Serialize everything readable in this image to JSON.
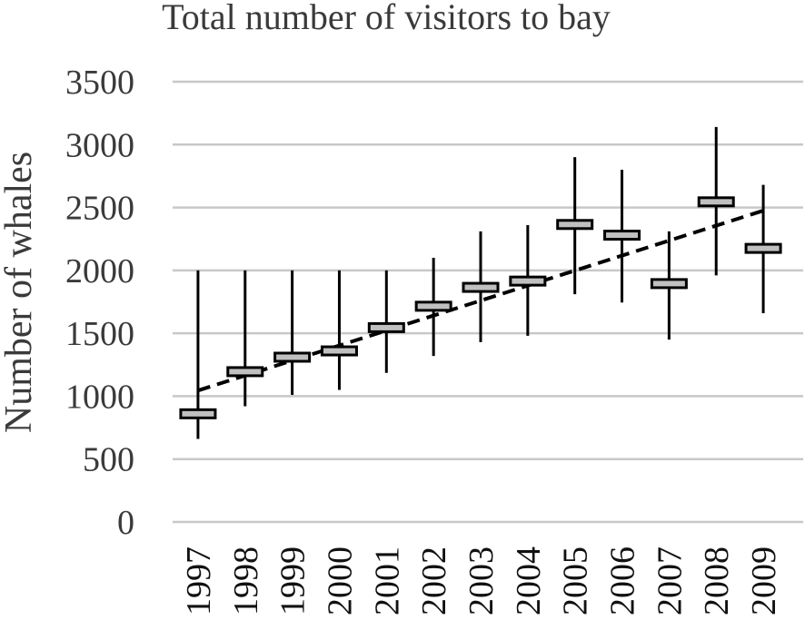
{
  "chart_data": {
    "type": "box",
    "title": "Total number of visitors to bay",
    "xlabel": "",
    "ylabel": "Number of whales",
    "ylim": [
      0,
      3500
    ],
    "yticks": [
      0,
      500,
      1000,
      1500,
      2000,
      2500,
      3000,
      3500
    ],
    "grid": true,
    "categories": [
      "1997",
      "1998",
      "1999",
      "2000",
      "2001",
      "2002",
      "2003",
      "2004",
      "2005",
      "2006",
      "2007",
      "2008",
      "2009"
    ],
    "series": [
      {
        "median": [
          860,
          1195,
          1310,
          1360,
          1545,
          1715,
          1865,
          1915,
          2365,
          2280,
          1895,
          2545,
          2175
        ],
        "low": [
          660,
          920,
          1010,
          1050,
          1185,
          1320,
          1430,
          1480,
          1810,
          1745,
          1450,
          1960,
          1660
        ],
        "high": [
          2000,
          2000,
          2000,
          2000,
          2000,
          2100,
          2310,
          2360,
          2900,
          2800,
          2310,
          3140,
          2680
        ]
      }
    ],
    "trendline": {
      "style": "dashed",
      "start": 1045,
      "end": 2475
    },
    "colors": {
      "box_fill": "#c0c0c0",
      "box_stroke": "#000000",
      "whisker": "#000000",
      "trend": "#000000",
      "grid": "#c8c8c8"
    }
  }
}
